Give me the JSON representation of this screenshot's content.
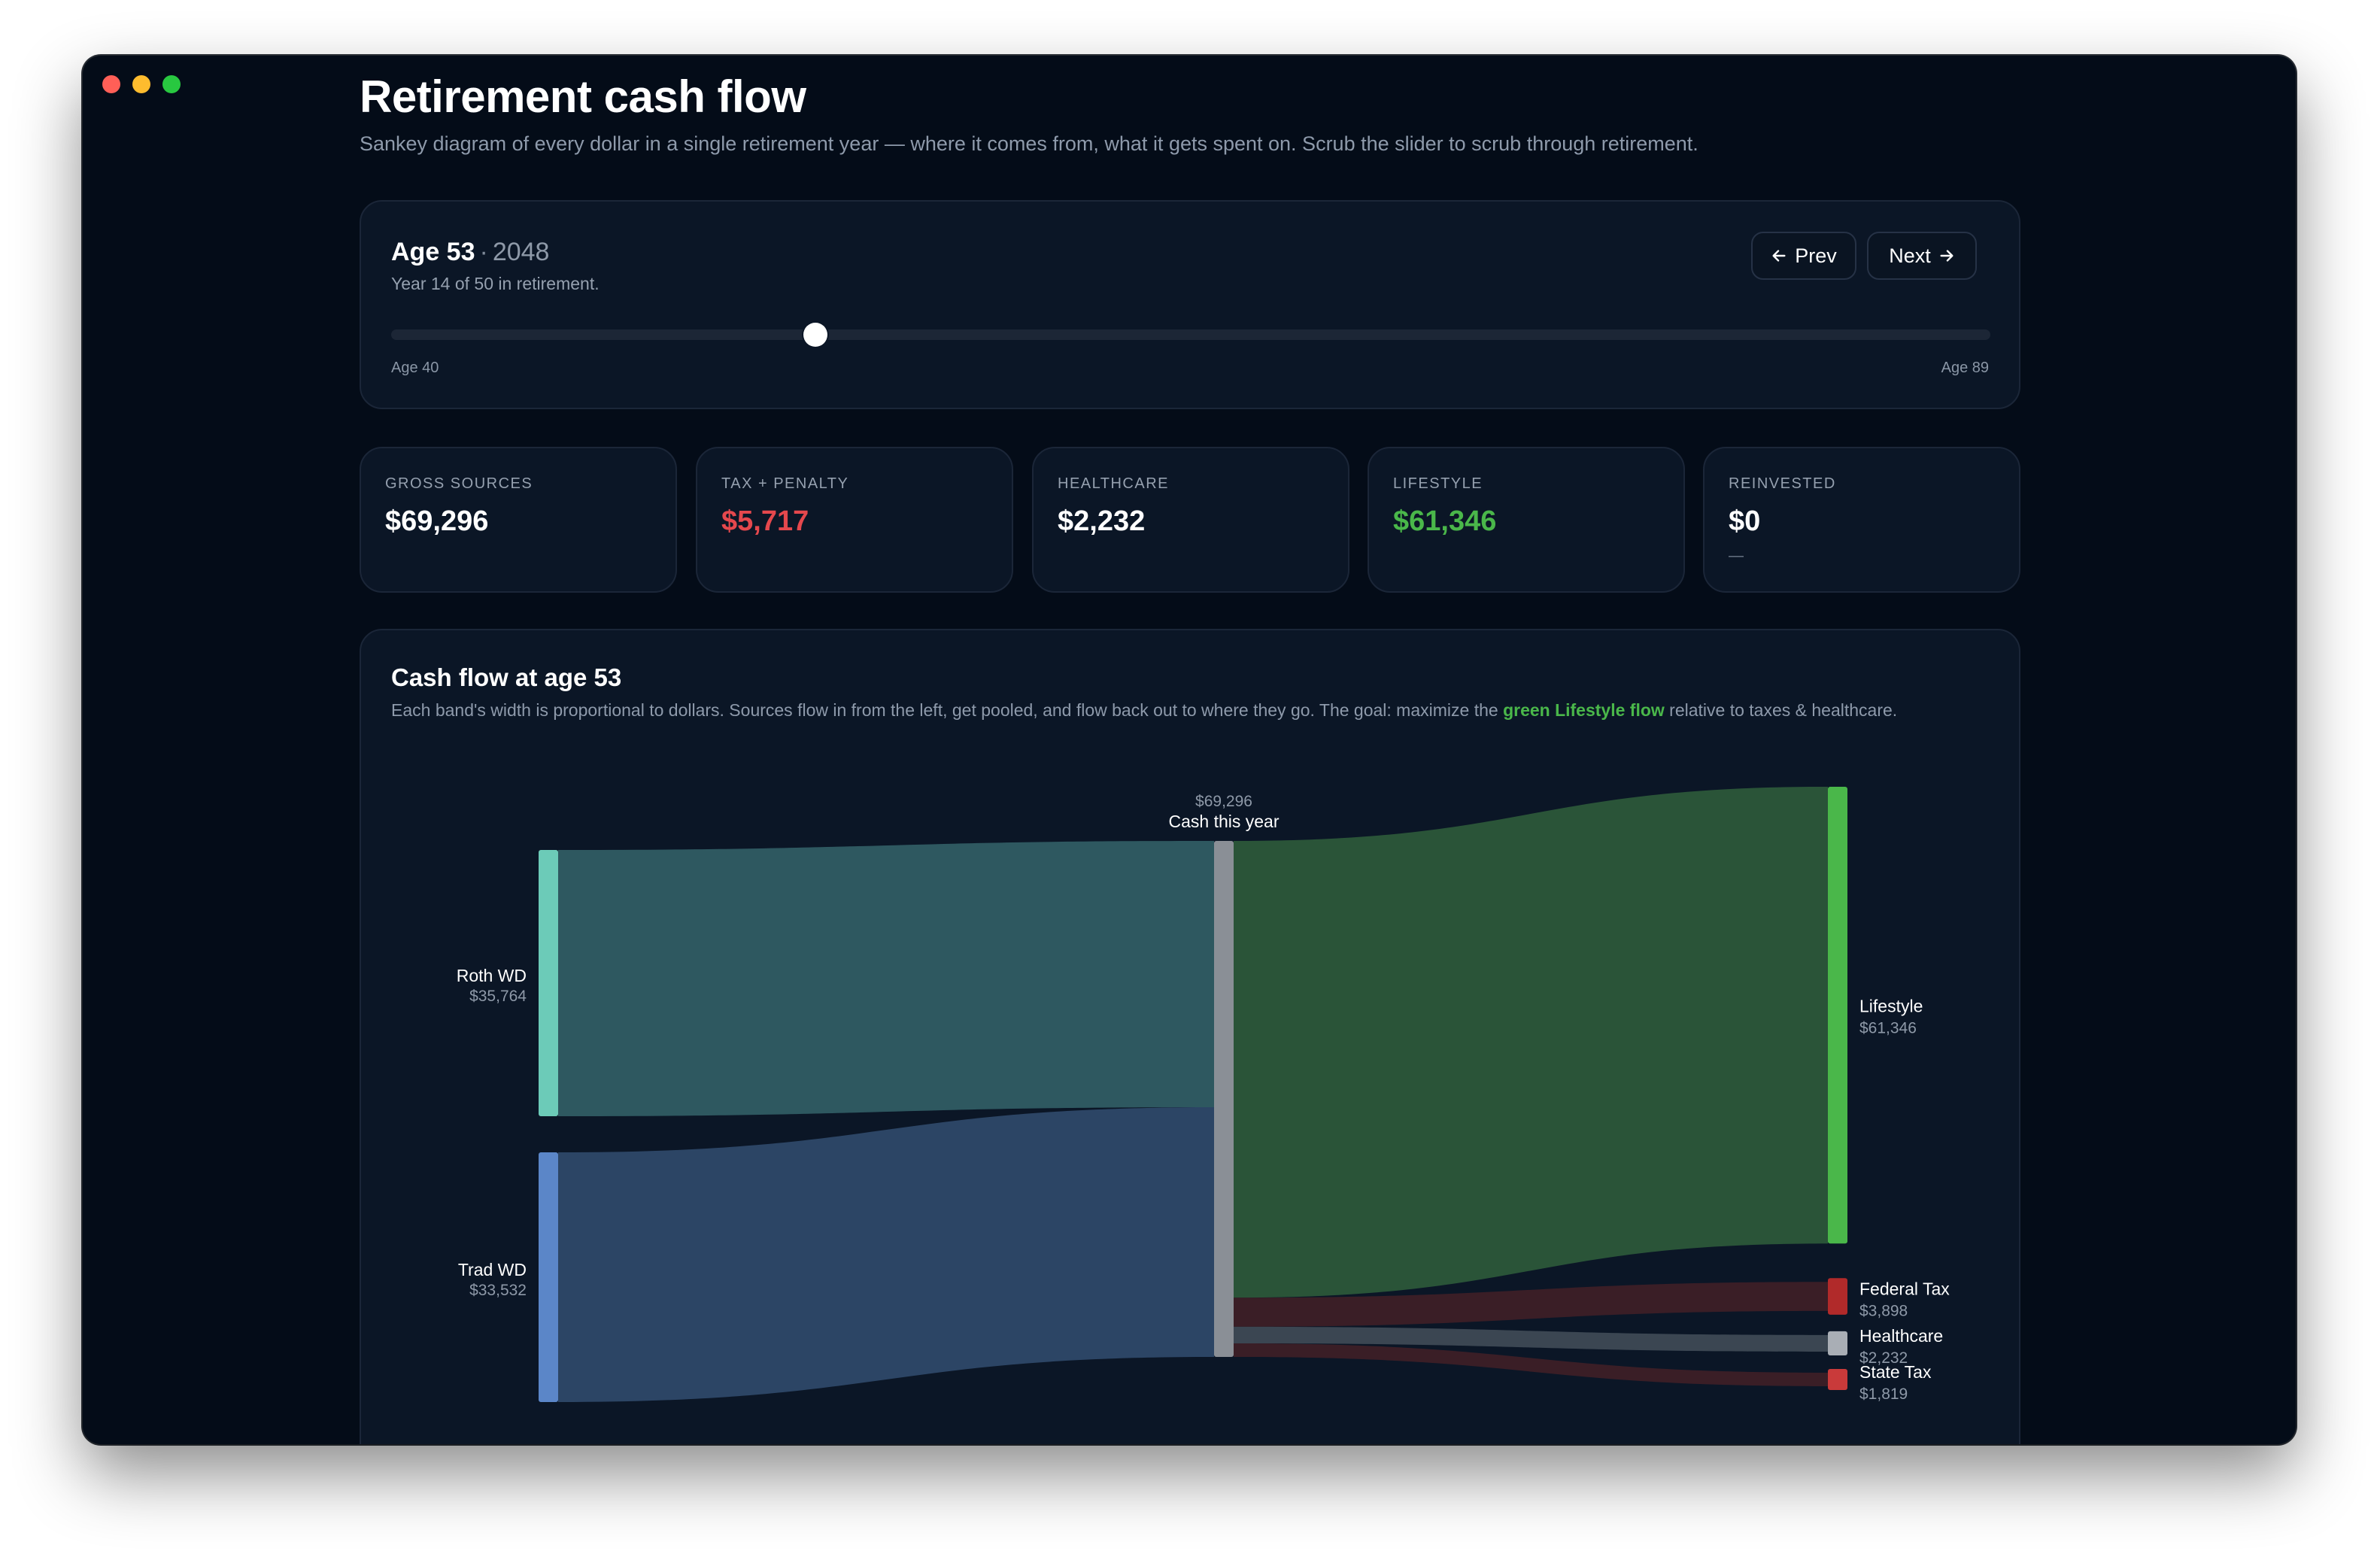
{
  "header": {
    "title": "Retirement cash flow",
    "subtitle": "Sankey diagram of every dollar in a single retirement year — where it comes from, what it gets spent on. Scrub the slider to scrub through retirement."
  },
  "scrubber": {
    "age_label": "Age 53",
    "separator": "·",
    "year": "2048",
    "subline": "Year 14 of 50 in retirement.",
    "prev_label": "Prev",
    "next_label": "Next",
    "min_label": "Age 40",
    "max_label": "Age 89",
    "age_min": 40,
    "age_max": 89,
    "age_current": 53
  },
  "stats": [
    {
      "label": "GROSS SOURCES",
      "value": "$69,296",
      "note": ""
    },
    {
      "label": "TAX + PENALTY",
      "value": "$5,717",
      "note": ""
    },
    {
      "label": "HEALTHCARE",
      "value": "$2,232",
      "note": ""
    },
    {
      "label": "LIFESTYLE",
      "value": "$61,346",
      "note": ""
    },
    {
      "label": "REINVESTED",
      "value": "$0",
      "note": "—"
    }
  ],
  "flow": {
    "title": "Cash flow at age 53",
    "desc_before": "Each band's width is proportional to dollars. Sources flow in from the left, get pooled, and flow back out to where they go. The goal: maximize the ",
    "desc_highlight": "green Lifestyle flow",
    "desc_after": " relative to taxes & healthcare."
  },
  "colors": {
    "roth": "#6ccbb8",
    "trad": "#5b86c8",
    "pool": "#8a8f96",
    "lifestyle": "#4ab74a",
    "federal_tax": "#b12a2a",
    "healthcare": "#a9aeb5",
    "state_tax": "#c93a3a"
  },
  "chart_data": {
    "type": "sankey",
    "pool": {
      "name": "Cash this year",
      "value_label": "$69,296",
      "value": 69296
    },
    "sources": [
      {
        "name": "Roth WD",
        "value_label": "$35,764",
        "value": 35764
      },
      {
        "name": "Trad WD",
        "value_label": "$33,532",
        "value": 33532
      }
    ],
    "uses": [
      {
        "name": "Lifestyle",
        "value_label": "$61,346",
        "value": 61346
      },
      {
        "name": "Federal Tax",
        "value_label": "$3,898",
        "value": 3898
      },
      {
        "name": "Healthcare",
        "value_label": "$2,232",
        "value": 2232
      },
      {
        "name": "State Tax",
        "value_label": "$1,819",
        "value": 1819
      }
    ]
  }
}
